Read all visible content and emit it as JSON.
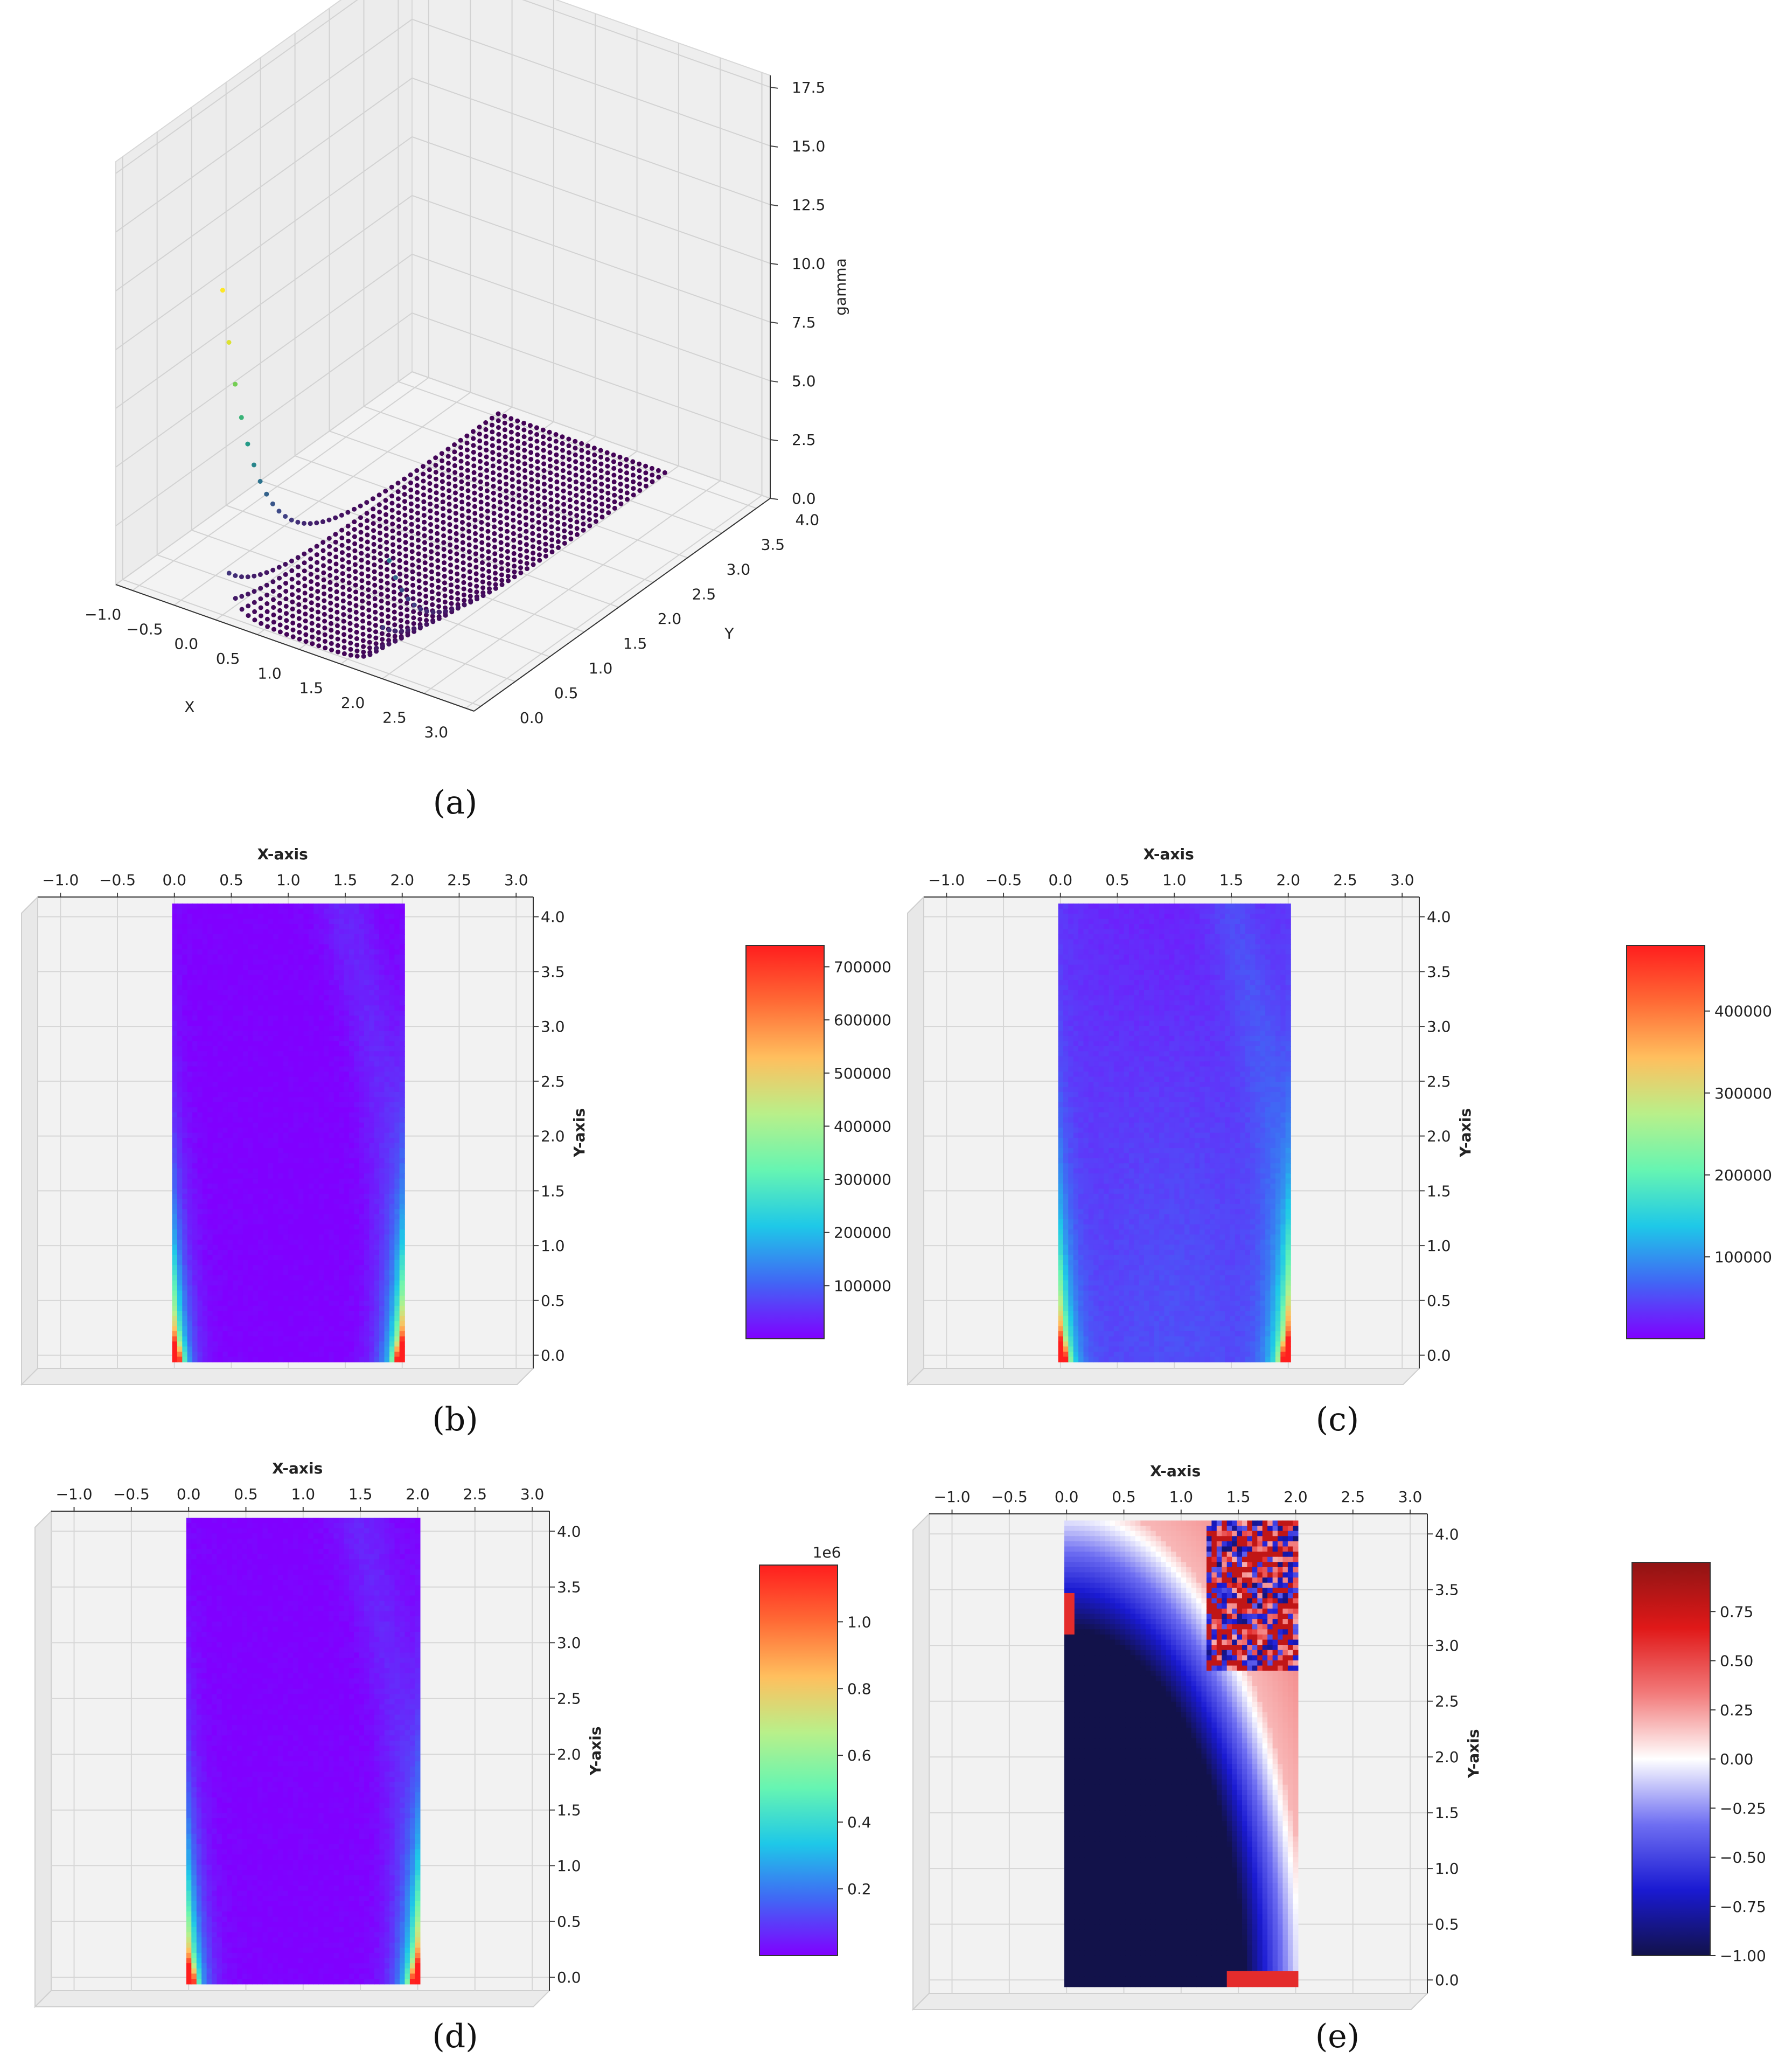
{
  "captions": {
    "a": "(a)",
    "b": "(b)",
    "c": "(c)",
    "d": "(d)",
    "e": "(e)"
  },
  "colormaps": {
    "rainbow": [
      "#8000ff",
      "#4166f5",
      "#1ec8e8",
      "#66f5b2",
      "#b8f08a",
      "#ffbf5e",
      "#ff6a35",
      "#ff1e1e"
    ],
    "viridis": [
      "#440154",
      "#414487",
      "#2a788e",
      "#22a884",
      "#7ad151",
      "#fde725"
    ],
    "seismic": [
      "#12124a",
      "#1a1ad2",
      "#6e6ef2",
      "#ffffff",
      "#f27a7a",
      "#e01818",
      "#8f1414"
    ]
  },
  "chart_data": [
    {
      "id": "a",
      "type": "scatter",
      "title": "",
      "xlabel": "X",
      "ylabel": "Y",
      "zlabel": "gamma",
      "x_ticks": [
        "−1.0",
        "−0.5",
        "0.0",
        "0.5",
        "1.0",
        "1.5",
        "2.0",
        "2.5",
        "3.0"
      ],
      "y_ticks": [
        "0.0",
        "0.5",
        "1.0",
        "1.5",
        "2.0",
        "2.5",
        "3.0",
        "3.5",
        "4.0"
      ],
      "z_ticks": [
        "0.0",
        "2.5",
        "5.0",
        "7.5",
        "10.0",
        "12.5",
        "15.0",
        "17.5"
      ],
      "xlim": [
        -1.2,
        3.1
      ],
      "ylim": [
        -0.1,
        4.2
      ],
      "zlim": [
        0,
        18
      ],
      "domain_x": [
        0,
        2
      ],
      "domain_y": [
        0,
        4
      ],
      "colormap": "viridis"
    },
    {
      "id": "b",
      "type": "heatmap",
      "xlabel": "X-axis",
      "ylabel": "Y-axis",
      "x_ticks": [
        "−1.0",
        "−0.5",
        "0.0",
        "0.5",
        "1.0",
        "1.5",
        "2.0",
        "2.5",
        "3.0"
      ],
      "y_ticks": [
        "0.0",
        "0.5",
        "1.0",
        "1.5",
        "2.0",
        "2.5",
        "3.0",
        "3.5",
        "4.0"
      ],
      "colorbar_ticks": [
        "100000",
        "200000",
        "300000",
        "400000",
        "500000",
        "600000",
        "700000"
      ],
      "colorbar_values": [
        100000,
        200000,
        300000,
        400000,
        500000,
        600000,
        700000
      ],
      "colorbar_range": [
        0,
        740000
      ],
      "colorbar_offset": "",
      "colormap": "rainbow"
    },
    {
      "id": "c",
      "type": "heatmap",
      "xlabel": "X-axis",
      "ylabel": "Y-axis",
      "x_ticks": [
        "−1.0",
        "−0.5",
        "0.0",
        "0.5",
        "1.0",
        "1.5",
        "2.0",
        "2.5",
        "3.0"
      ],
      "y_ticks": [
        "0.0",
        "0.5",
        "1.0",
        "1.5",
        "2.0",
        "2.5",
        "3.0",
        "3.5",
        "4.0"
      ],
      "colorbar_ticks": [
        "100000",
        "200000",
        "300000",
        "400000"
      ],
      "colorbar_values": [
        100000,
        200000,
        300000,
        400000
      ],
      "colorbar_range": [
        0,
        480000
      ],
      "colorbar_offset": "",
      "colormap": "rainbow"
    },
    {
      "id": "d",
      "type": "heatmap",
      "xlabel": "X-axis",
      "ylabel": "Y-axis",
      "x_ticks": [
        "−1.0",
        "−0.5",
        "0.0",
        "0.5",
        "1.0",
        "1.5",
        "2.0",
        "2.5",
        "3.0"
      ],
      "y_ticks": [
        "0.0",
        "0.5",
        "1.0",
        "1.5",
        "2.0",
        "2.5",
        "3.0",
        "3.5",
        "4.0"
      ],
      "colorbar_ticks": [
        "0.2",
        "0.4",
        "0.6",
        "0.8",
        "1.0"
      ],
      "colorbar_values": [
        0.2,
        0.4,
        0.6,
        0.8,
        1.0
      ],
      "colorbar_range": [
        0,
        1.17
      ],
      "colorbar_offset": "1e6",
      "colormap": "rainbow"
    },
    {
      "id": "e",
      "type": "heatmap",
      "xlabel": "X-axis",
      "ylabel": "Y-axis",
      "x_ticks": [
        "−1.0",
        "−0.5",
        "0.0",
        "0.5",
        "1.0",
        "1.5",
        "2.0",
        "2.5",
        "3.0"
      ],
      "y_ticks": [
        "0.0",
        "0.5",
        "1.0",
        "1.5",
        "2.0",
        "2.5",
        "3.0",
        "3.5",
        "4.0"
      ],
      "colorbar_ticks": [
        "−1.00",
        "−0.75",
        "−0.50",
        "−0.25",
        "0.00",
        "0.25",
        "0.50",
        "0.75"
      ],
      "colorbar_values": [
        -1.0,
        -0.75,
        -0.5,
        -0.25,
        0.0,
        0.25,
        0.5,
        0.75
      ],
      "colorbar_range": [
        -1.0,
        1.0
      ],
      "colorbar_offset": "",
      "colormap": "seismic"
    }
  ]
}
